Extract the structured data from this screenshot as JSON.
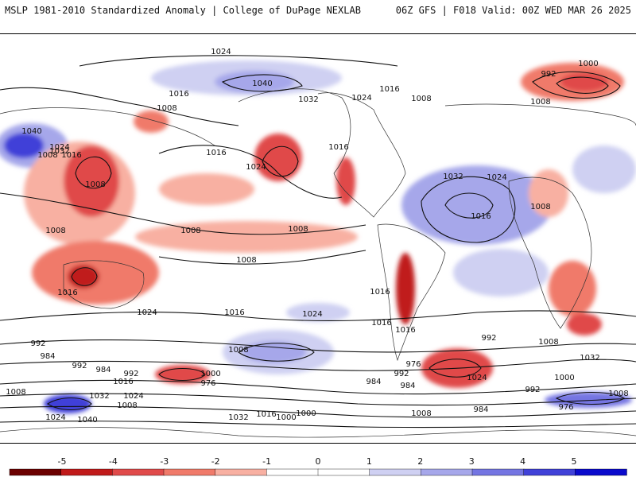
{
  "header": {
    "left_title": "MSLP 1981-2010 Standardized Anomaly | College of DuPage NEXLAB",
    "right_title": "06Z GFS | F018 Valid: 00Z WED MAR 26 2025"
  },
  "colors": {
    "neg5": "#6b0000",
    "neg4": "#c01a1a",
    "neg3": "#e04a4a",
    "neg2": "#f07a6a",
    "neg1": "#f8b0a2",
    "zero": "#ffffff",
    "pos1": "#cfd0f2",
    "pos2": "#a6a7ea",
    "pos3": "#7475e2",
    "pos4": "#4041d8",
    "pos5": "#0a0acc",
    "isobar": "#111111",
    "coast": "#333333"
  },
  "colorbar": {
    "ticks": [
      "-5",
      "-4",
      "-3",
      "-2",
      "-1",
      "0",
      "1",
      "2",
      "3",
      "4",
      "5"
    ],
    "values": [
      -5,
      -4,
      -3,
      -2,
      -1,
      0,
      1,
      2,
      3,
      4,
      5
    ]
  },
  "isobar_labels": [
    "1024",
    "1040",
    "1016",
    "1008",
    "1032",
    "1024",
    "1016",
    "1008",
    "1008",
    "1000",
    "992",
    "1040",
    "1032",
    "1024",
    "1008",
    "1016",
    "1016",
    "1024",
    "1016",
    "1032",
    "1024",
    "1016",
    "1008",
    "1008",
    "1008",
    "1008",
    "1008",
    "1008",
    "1016",
    "1024",
    "1016",
    "1016",
    "1024",
    "1016",
    "1016",
    "1008",
    "1000",
    "992",
    "984",
    "992",
    "984",
    "1016",
    "1032",
    "1024",
    "1008",
    "976",
    "984",
    "976",
    "984",
    "992",
    "992",
    "1008",
    "1008",
    "992",
    "1000",
    "1024",
    "1040",
    "1032",
    "1016",
    "1000",
    "1024",
    "992",
    "1008",
    "1000",
    "1008",
    "1032",
    "984",
    "976",
    "1024"
  ]
}
